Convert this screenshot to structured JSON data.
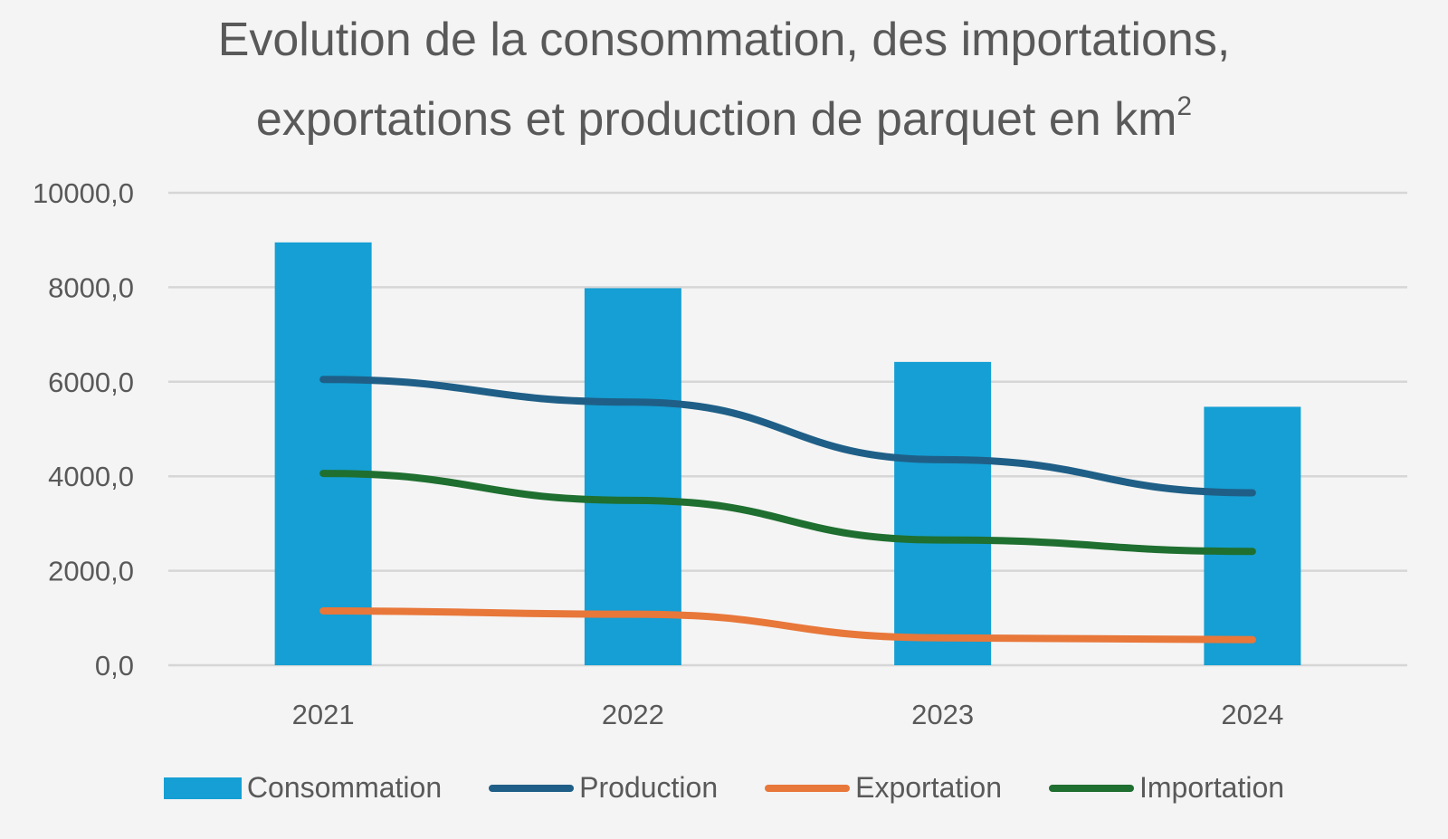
{
  "chart_data": {
    "type": "bar",
    "title_line1": "Evolution de la consommation, des importations,",
    "title_line2": "exportations et production de parquet en km",
    "title_sup": "2",
    "categories": [
      "2021",
      "2022",
      "2023",
      "2024"
    ],
    "y_ticks": [
      "0,0",
      "2000,0",
      "4000,0",
      "6000,0",
      "8000,0",
      "10000,0"
    ],
    "ylim": [
      0,
      10000
    ],
    "grid": true,
    "legend_position": "bottom",
    "series": [
      {
        "name": "Consommation",
        "kind": "bar",
        "color": "#159fd4",
        "values": [
          8950,
          7980,
          6420,
          5470
        ]
      },
      {
        "name": "Production",
        "kind": "line",
        "color": "#1f5f87",
        "values": [
          6050,
          5570,
          4350,
          3650
        ]
      },
      {
        "name": "Exportation",
        "kind": "line",
        "color": "#e8773a",
        "values": [
          1150,
          1080,
          580,
          540
        ]
      },
      {
        "name": "Importation",
        "kind": "line",
        "color": "#1f6f30",
        "values": [
          4060,
          3490,
          2650,
          2410
        ]
      }
    ]
  }
}
